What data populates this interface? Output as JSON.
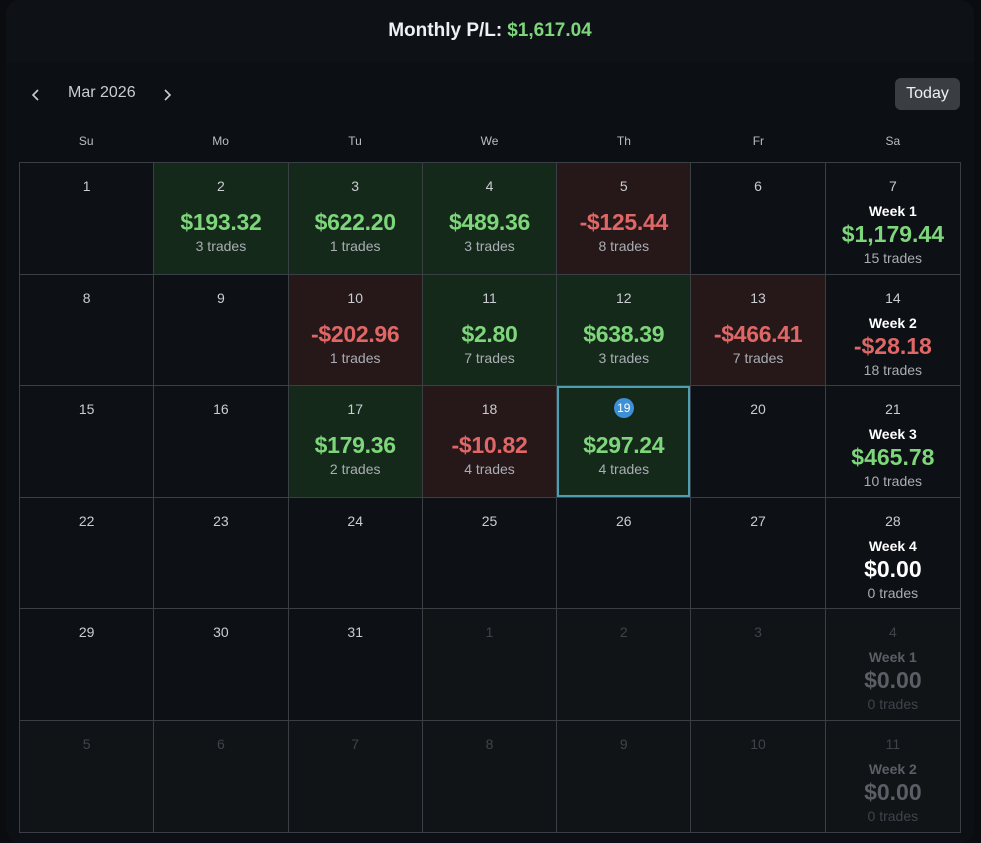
{
  "header": {
    "label": "Monthly P/L:",
    "value": "$1,617.04"
  },
  "nav": {
    "prev_icon": "chevron-left-icon",
    "next_icon": "chevron-right-icon",
    "month": "Mar 2026",
    "today_label": "Today"
  },
  "weekdays": [
    "Su",
    "Mo",
    "Tu",
    "We",
    "Th",
    "Fr",
    "Sa"
  ],
  "cells": [
    {
      "day": "1"
    },
    {
      "day": "2",
      "amount": "$193.32",
      "trades": "3 trades",
      "status": "win"
    },
    {
      "day": "3",
      "amount": "$622.20",
      "trades": "1 trades",
      "status": "win"
    },
    {
      "day": "4",
      "amount": "$489.36",
      "trades": "3 trades",
      "status": "win"
    },
    {
      "day": "5",
      "amount": "-$125.44",
      "trades": "8 trades",
      "status": "loss"
    },
    {
      "day": "6"
    },
    {
      "day": "7",
      "week": "Week 1",
      "week_amount": "$1,179.44",
      "week_trades": "15 trades",
      "week_status": "pos"
    },
    {
      "day": "8"
    },
    {
      "day": "9"
    },
    {
      "day": "10",
      "amount": "-$202.96",
      "trades": "1 trades",
      "status": "loss"
    },
    {
      "day": "11",
      "amount": "$2.80",
      "trades": "7 trades",
      "status": "win"
    },
    {
      "day": "12",
      "amount": "$638.39",
      "trades": "3 trades",
      "status": "win"
    },
    {
      "day": "13",
      "amount": "-$466.41",
      "trades": "7 trades",
      "status": "loss"
    },
    {
      "day": "14",
      "week": "Week 2",
      "week_amount": "-$28.18",
      "week_trades": "18 trades",
      "week_status": "neg"
    },
    {
      "day": "15"
    },
    {
      "day": "16"
    },
    {
      "day": "17",
      "amount": "$179.36",
      "trades": "2 trades",
      "status": "win"
    },
    {
      "day": "18",
      "amount": "-$10.82",
      "trades": "4 trades",
      "status": "loss"
    },
    {
      "day": "19",
      "amount": "$297.24",
      "trades": "4 trades",
      "status": "win",
      "today": true
    },
    {
      "day": "20"
    },
    {
      "day": "21",
      "week": "Week 3",
      "week_amount": "$465.78",
      "week_trades": "10 trades",
      "week_status": "pos"
    },
    {
      "day": "22"
    },
    {
      "day": "23"
    },
    {
      "day": "24"
    },
    {
      "day": "25"
    },
    {
      "day": "26"
    },
    {
      "day": "27"
    },
    {
      "day": "28",
      "week": "Week 4",
      "week_amount": "$0.00",
      "week_trades": "0 trades",
      "week_status": "zero"
    },
    {
      "day": "29"
    },
    {
      "day": "30"
    },
    {
      "day": "31"
    },
    {
      "day": "1",
      "outside": true
    },
    {
      "day": "2",
      "outside": true
    },
    {
      "day": "3",
      "outside": true
    },
    {
      "day": "4",
      "outside": true,
      "week": "Week 1",
      "week_amount": "$0.00",
      "week_trades": "0 trades",
      "week_status": "zero"
    },
    {
      "day": "5",
      "outside": true
    },
    {
      "day": "6",
      "outside": true
    },
    {
      "day": "7",
      "outside": true
    },
    {
      "day": "8",
      "outside": true
    },
    {
      "day": "9",
      "outside": true
    },
    {
      "day": "10",
      "outside": true
    },
    {
      "day": "11",
      "outside": true,
      "week": "Week 2",
      "week_amount": "$0.00",
      "week_trades": "0 trades",
      "week_status": "zero"
    }
  ]
}
